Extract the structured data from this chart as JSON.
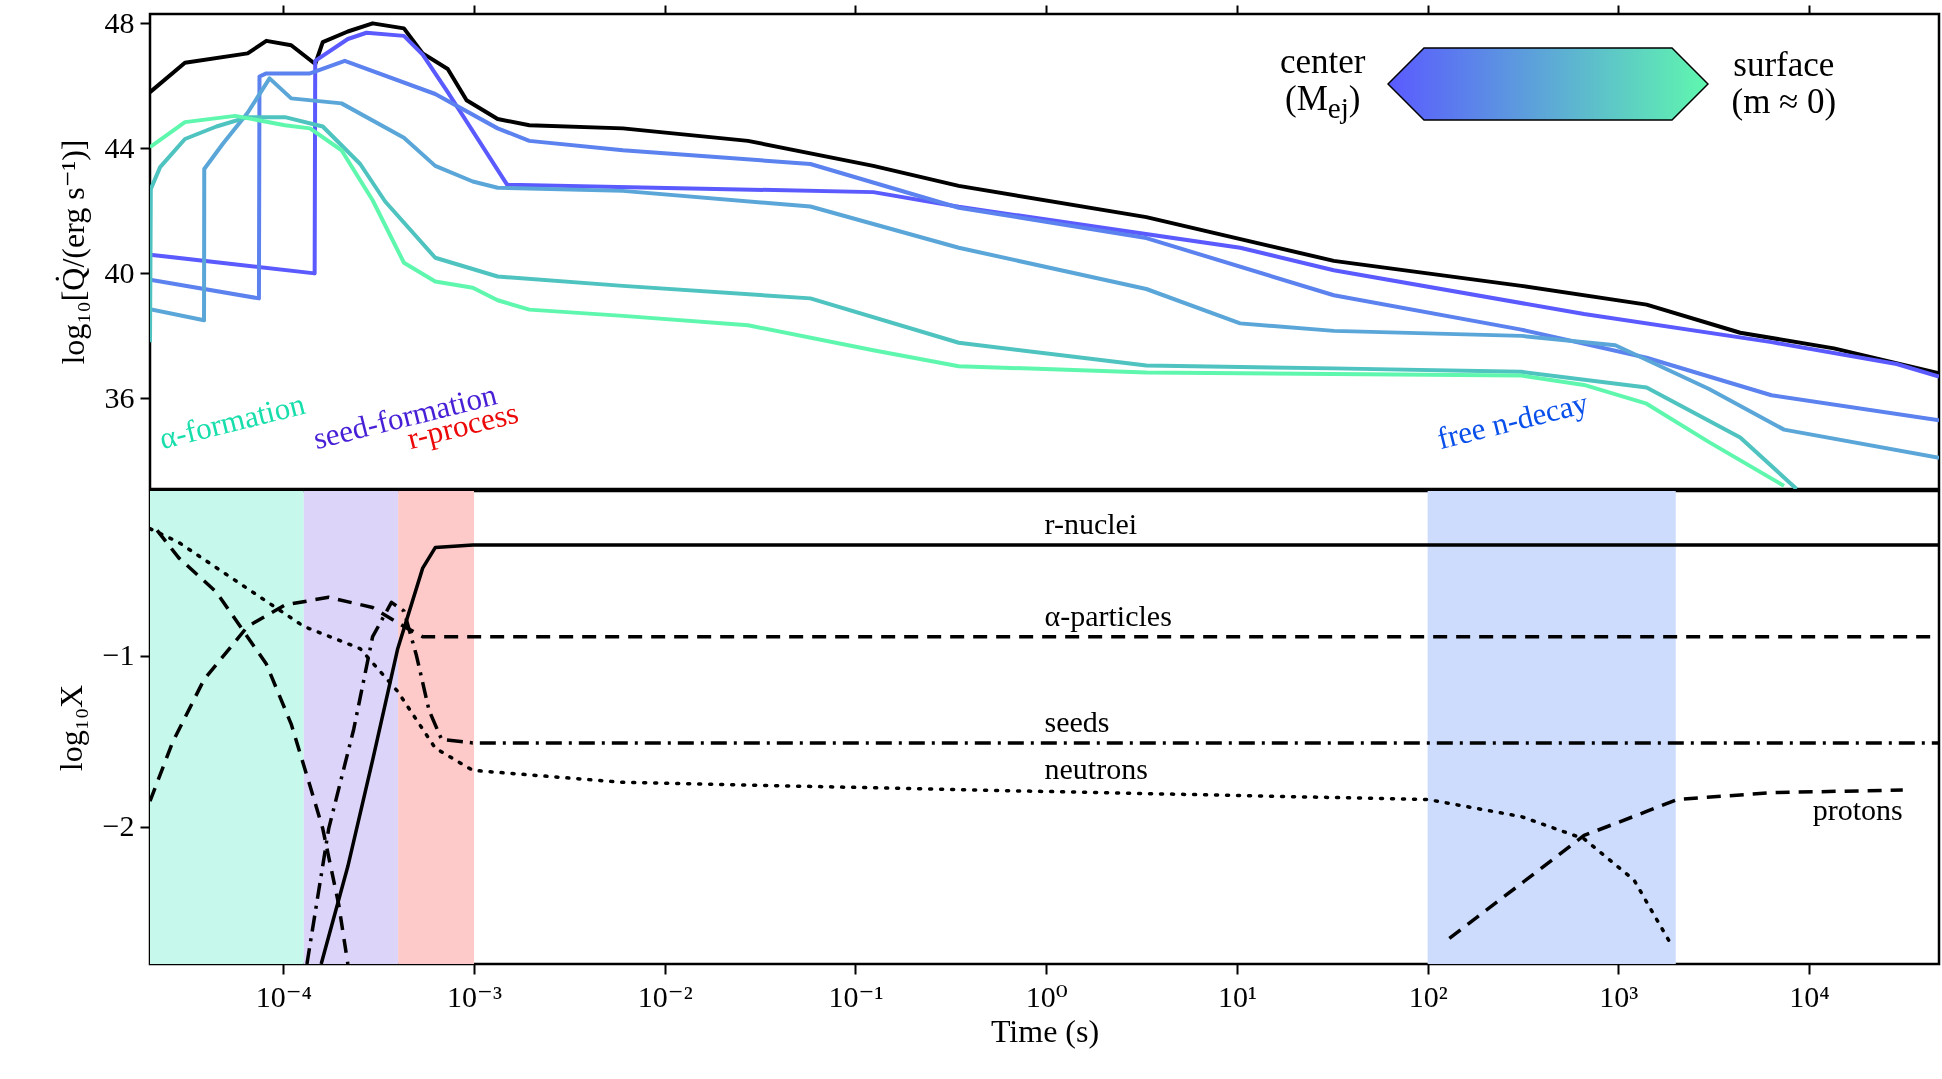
{
  "chart_data": [
    {
      "type": "line",
      "ylabel": "log₁₀[Q̇/(erg s⁻¹)]",
      "xlim": [
        2e-05,
        48000
      ],
      "ylim": [
        33.1,
        48.3
      ],
      "log": "x",
      "tick_labels": "y",
      "xticks": [
        0.0001,
        0.001,
        0.01,
        0.1,
        1,
        10,
        100,
        1000,
        10000
      ],
      "yticks": [
        36,
        40,
        44,
        48
      ],
      "annotations": [
        "center (M$_{ej}$)",
        "surface (m ≈ 0)"
      ],
      "series": [
        {
          "color": "#000000",
          "x": [
            2e-05,
            3.05e-05,
            6.5e-05,
            8.15e-05,
            0.00011,
            0.000147,
            0.000161,
            0.000218,
            0.000294,
            0.000429,
            0.000538,
            0.000728,
            0.000914,
            0.00133,
            0.00195,
            0.00603,
            0.0273,
            0.124,
            0.348,
            3.35,
            32.2,
            310,
            1406,
            4355,
            13500,
            48000
          ],
          "values": [
            45.8,
            46.74,
            47.04,
            47.44,
            47.3,
            46.7,
            47.4,
            47.74,
            48.0,
            47.84,
            47.04,
            46.54,
            45.54,
            44.94,
            44.74,
            44.64,
            44.24,
            43.44,
            42.8,
            41.8,
            40.4,
            39.6,
            39.0,
            38.1,
            37.6,
            36.8
          ]
        },
        {
          "color": "#5a5aff",
          "x": [
            2e-05,
            0.000146,
            0.000147,
            0.000218,
            0.000273,
            0.000429,
            0.000538,
            0.000728,
            0.00149,
            0.124,
            0.348,
            10.4,
            32.2,
            661,
            6350,
            28800,
            48000
          ],
          "values": [
            40.6,
            40.0,
            46.8,
            47.5,
            47.7,
            47.6,
            47.0,
            45.8,
            42.84,
            42.6,
            42.13,
            40.82,
            40.1,
            38.7,
            37.8,
            37.1,
            36.7
          ]
        },
        {
          "color": "#5b82ee",
          "x": [
            2e-05,
            7.45e-05,
            7.5e-05,
            8.15e-05,
            0.000138,
            0.00021,
            0.000626,
            0.00133,
            0.00195,
            0.00603,
            0.058,
            0.348,
            3.35,
            32.2,
            310,
            1406,
            6350,
            48000
          ],
          "values": [
            39.8,
            39.2,
            46.3,
            46.4,
            46.4,
            46.8,
            45.74,
            44.64,
            44.24,
            43.94,
            43.5,
            42.1,
            41.13,
            39.3,
            38.2,
            37.3,
            36.1,
            35.3
          ]
        },
        {
          "color": "#5ba6d8",
          "x": [
            2e-05,
            3.84e-05,
            3.85e-05,
            4.81e-05,
            6.5e-05,
            8.47e-05,
            0.00011,
            0.000202,
            0.000429,
            0.000626,
            0.000985,
            0.00133,
            0.00603,
            0.058,
            0.348,
            3.35,
            10.4,
            32.2,
            310,
            964,
            2990,
            7390,
            48000
          ],
          "values": [
            38.85,
            38.5,
            43.34,
            44.14,
            45.14,
            46.24,
            45.6,
            45.44,
            44.34,
            43.44,
            42.94,
            42.74,
            42.64,
            42.14,
            40.82,
            39.5,
            38.4,
            38.16,
            38.0,
            37.7,
            36.3,
            35.0,
            34.1
          ]
        },
        {
          "color": "#4ec3c0",
          "x": [
            2e-05,
            2.02e-05,
            2.26e-05,
            3.05e-05,
            4.46e-05,
            6.5e-05,
            0.000102,
            0.000161,
            0.000253,
            0.000342,
            0.000626,
            0.00133,
            0.00603,
            0.058,
            0.348,
            3.35,
            32.2,
            310,
            1406,
            4355,
            8600
          ],
          "values": [
            37.8,
            42.7,
            43.4,
            44.3,
            44.7,
            45.0,
            45.0,
            44.7,
            43.5,
            42.3,
            40.5,
            39.9,
            39.6,
            39.2,
            37.78,
            37.05,
            36.96,
            36.85,
            36.35,
            34.75,
            33.1
          ]
        },
        {
          "color": "#5ff7ae",
          "x": [
            2e-05,
            3.05e-05,
            5.6e-05,
            0.000102,
            0.000138,
            0.000202,
            0.000294,
            0.000429,
            0.000626,
            0.000985,
            0.00133,
            0.00195,
            0.00603,
            0.0273,
            0.124,
            0.348,
            3.35,
            310,
            661,
            1406,
            2990,
            7390
          ],
          "values": [
            44.04,
            44.84,
            45.04,
            44.74,
            44.64,
            43.94,
            42.34,
            40.34,
            39.74,
            39.54,
            39.14,
            38.84,
            38.64,
            38.34,
            37.54,
            37.03,
            36.83,
            36.73,
            36.43,
            35.83,
            34.6,
            33.2
          ]
        }
      ]
    },
    {
      "type": "line",
      "xlabel": "Time (s)",
      "ylabel": "log₁₀X",
      "xlim": [
        2e-05,
        48000
      ],
      "ylim": [
        -2.8,
        -0.04
      ],
      "log": "x",
      "xticks": [
        {
          "value": 0.0001,
          "label": "10⁻⁴"
        },
        {
          "value": 0.001,
          "label": "10⁻³"
        },
        {
          "value": 0.01,
          "label": "10⁻²"
        },
        {
          "value": 0.1,
          "label": "10⁻¹"
        },
        {
          "value": 1,
          "label": "10⁰"
        },
        {
          "value": 10,
          "label": "10¹"
        },
        {
          "value": 100,
          "label": "10²"
        },
        {
          "value": 1000,
          "label": "10³"
        },
        {
          "value": 10000,
          "label": "10⁴"
        }
      ],
      "yticks": [
        -2,
        -1
      ],
      "bands": [
        {
          "axis": "x",
          "from": 2e-05,
          "to": 0.000128,
          "label": "α-formation",
          "color": "#c6f9ec"
        },
        {
          "axis": "x",
          "from": 0.000128,
          "to": 0.0004,
          "label": "seed-formation",
          "color": "#ddd5f9"
        },
        {
          "axis": "x",
          "from": 0.0004,
          "to": 0.001,
          "label": "r-process",
          "color": "#fdc9c9"
        },
        {
          "axis": "x",
          "from": 100,
          "to": 2000,
          "label": "free n-decay",
          "color": "#cddcfd"
        }
      ],
      "series": [
        {
          "name": "r-nuclei",
          "color": "#000000",
          "line_style": "solid",
          "x": [
            0.000158,
            0.000218,
            0.000294,
            0.000398,
            0.000538,
            0.000626,
            0.000985,
            48000
          ],
          "values": [
            -2.8,
            -2.23,
            -1.61,
            -0.96,
            -0.49,
            -0.37,
            -0.355,
            -0.355
          ]
        },
        {
          "name": "α-particles",
          "color": "#000000",
          "line_style": "dashed",
          "x": [
            2e-05,
            2.63e-05,
            3.84e-05,
            6.5e-05,
            0.000102,
            0.000173,
            0.000294,
            0.000429,
            0.000538,
            48000
          ],
          "values": [
            -1.85,
            -1.505,
            -1.14,
            -0.83,
            -0.705,
            -0.66,
            -0.72,
            -0.83,
            -0.89,
            -0.89
          ]
        },
        {
          "name": "seeds",
          "color": "#000000",
          "line_style": "dashdot",
          "x": [
            0.000133,
            0.000173,
            0.000234,
            0.000294,
            0.000369,
            0.000429,
            0.000499,
            0.000581,
            0.000676,
            0.000985,
            48000
          ],
          "values": [
            -2.8,
            -2.01,
            -1.43,
            -0.89,
            -0.69,
            -0.74,
            -1.0,
            -1.32,
            -1.49,
            -1.51,
            -1.51
          ]
        },
        {
          "name": "neutrons",
          "color": "#000000",
          "line_style": "dotted",
          "x": [
            2e-05,
            2.83e-05,
            6.5e-05,
            0.000128,
            0.000253,
            0.000398,
            0.000626,
            0.000985,
            0.00603,
            0.44,
            100,
            310,
            661,
            1208,
            1900
          ],
          "values": [
            -0.26,
            -0.34,
            -0.61,
            -0.83,
            -0.96,
            -1.21,
            -1.54,
            -1.67,
            -1.74,
            -1.785,
            -1.84,
            -1.94,
            -2.07,
            -2.31,
            -2.69
          ]
        },
        {
          "name": "protons",
          "color": "#000000",
          "line_style": "dashed",
          "x": [
            2.18e-05,
            2.83e-05,
            4.46e-05,
            8.15e-05,
            0.00011,
            0.000138,
            0.000161,
            0.000195,
            0.000218,
            1,
            130,
            310,
            661,
            1406,
            2040,
            6350,
            31000
          ],
          "values": [
            -0.27,
            -0.43,
            -0.63,
            -1.05,
            -1.4,
            -1.76,
            -2.01,
            -2.45,
            -2.8,
            null,
            -2.65,
            -2.33,
            -2.05,
            -1.91,
            -1.84,
            -1.8,
            -1.785
          ]
        }
      ]
    }
  ]
}
